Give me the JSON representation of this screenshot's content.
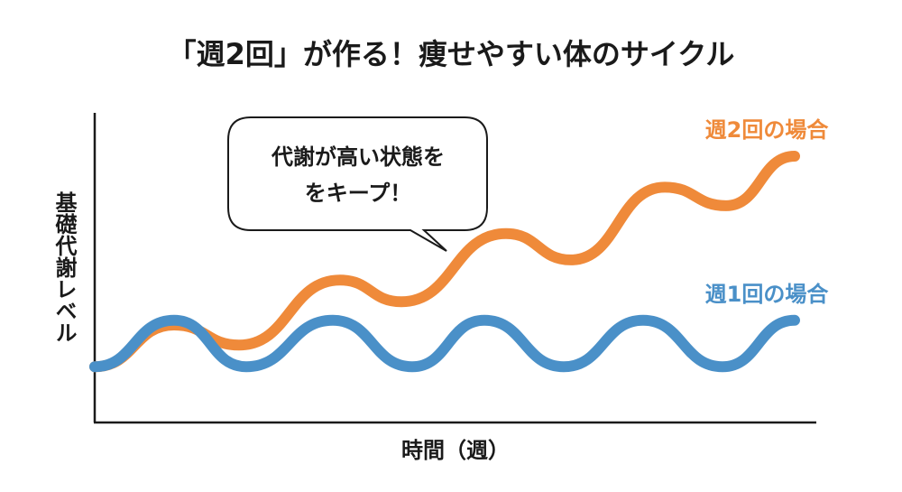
{
  "chart_data": {
    "type": "line",
    "title": "「週2回」が作る！痩せやすい体のサイクル",
    "x_label": "時間（週）",
    "y_label": "基礎代謝レベル",
    "annotation": [
      "代謝が高い状態を",
      "をキープ！"
    ],
    "xlim": [
      0,
      100
    ],
    "ylim": [
      0,
      100
    ],
    "series": [
      {
        "name": "週2回の場合",
        "color": "#ef8a3a",
        "x": [
          0,
          11,
          20,
          34,
          42.5,
          57,
          66,
          79,
          87.5,
          97
        ],
        "values": [
          18,
          31.5,
          25,
          46,
          39,
          61,
          52.5,
          76,
          70,
          86
        ]
      },
      {
        "name": "週1回の場合",
        "color": "#4a90c8",
        "x": [
          0,
          11,
          21,
          33,
          44,
          54,
          65,
          76,
          87,
          97
        ],
        "values": [
          18,
          33,
          18,
          33,
          18,
          33,
          18,
          33,
          18,
          33
        ]
      }
    ]
  }
}
